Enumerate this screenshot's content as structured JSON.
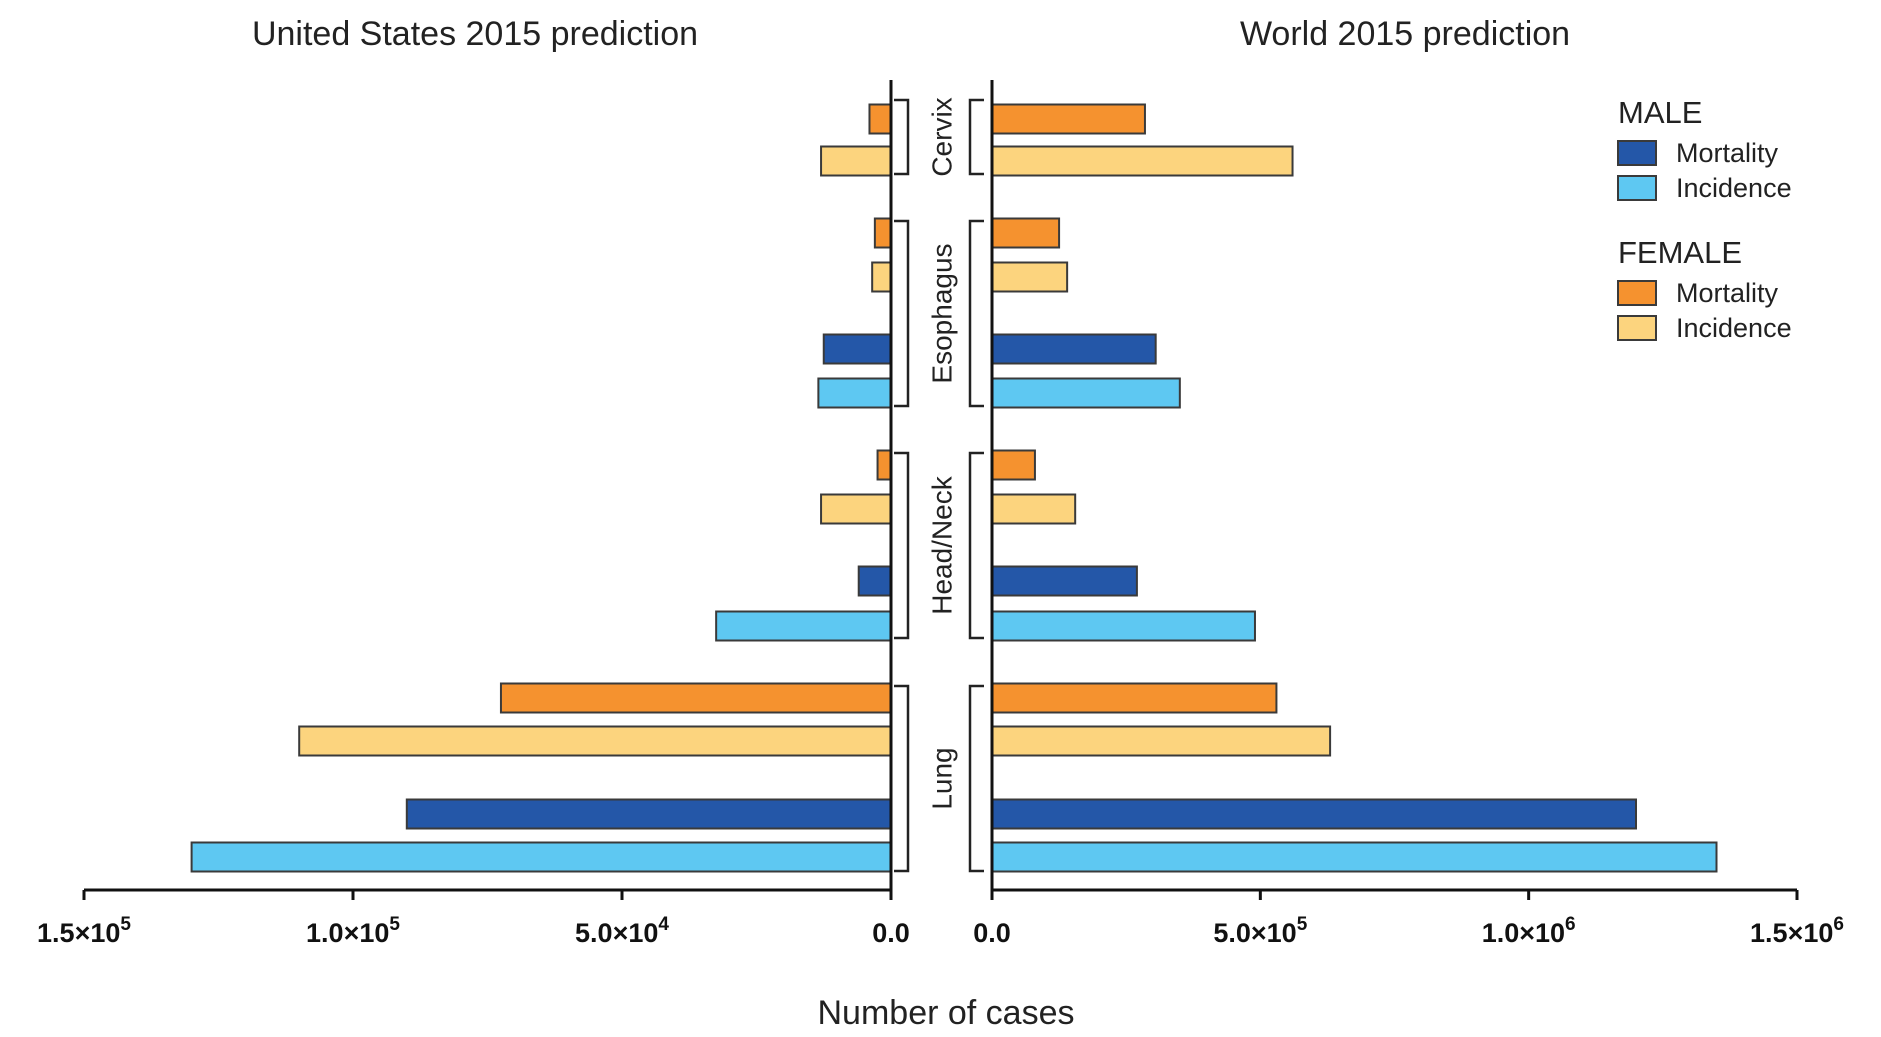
{
  "chart_data": {
    "type": "bar",
    "orientation": "horizontal",
    "xlabel": "Number of cases",
    "groups": [
      "Cervix",
      "Esophagus",
      "Head/Neck",
      "Lung"
    ],
    "colors": {
      "male_mortality": "#2457a8",
      "male_incidence": "#5ec8f2",
      "female_mortality": "#f5922f",
      "female_incidence": "#fcd47e"
    },
    "legend": {
      "placement": "top-right",
      "sections": [
        {
          "title": "MALE",
          "items": [
            {
              "key": "male_mortality",
              "label": "Mortality"
            },
            {
              "key": "male_incidence",
              "label": "Incidence"
            }
          ]
        },
        {
          "title": "FEMALE",
          "items": [
            {
              "key": "female_mortality",
              "label": "Mortality"
            },
            {
              "key": "female_incidence",
              "label": "Incidence"
            }
          ]
        }
      ]
    },
    "panels": [
      {
        "title": "United States 2015 prediction",
        "direction": "left",
        "xlim": [
          0,
          150000
        ],
        "ticks": [
          {
            "value": 150000,
            "label": "1.5×10",
            "exp": "5"
          },
          {
            "value": 100000,
            "label": "1.0×10",
            "exp": "5"
          },
          {
            "value": 50000,
            "label": "5.0×10",
            "exp": "4"
          },
          {
            "value": 0,
            "label": "0.0",
            "exp": ""
          }
        ],
        "bars": [
          {
            "group": "Cervix",
            "key": "female_mortality",
            "value": 4000
          },
          {
            "group": "Cervix",
            "key": "female_incidence",
            "value": 13000
          },
          {
            "group": "Esophagus",
            "key": "female_mortality",
            "value": 3000
          },
          {
            "group": "Esophagus",
            "key": "female_incidence",
            "value": 3500
          },
          {
            "group": "Esophagus",
            "key": "male_mortality",
            "value": 12500
          },
          {
            "group": "Esophagus",
            "key": "male_incidence",
            "value": 13500
          },
          {
            "group": "Head/Neck",
            "key": "female_mortality",
            "value": 2500
          },
          {
            "group": "Head/Neck",
            "key": "female_incidence",
            "value": 13000
          },
          {
            "group": "Head/Neck",
            "key": "male_mortality",
            "value": 6000
          },
          {
            "group": "Head/Neck",
            "key": "male_incidence",
            "value": 32500
          },
          {
            "group": "Lung",
            "key": "female_mortality",
            "value": 72500
          },
          {
            "group": "Lung",
            "key": "female_incidence",
            "value": 110000
          },
          {
            "group": "Lung",
            "key": "male_mortality",
            "value": 90000
          },
          {
            "group": "Lung",
            "key": "male_incidence",
            "value": 130000
          }
        ]
      },
      {
        "title": "World 2015 prediction",
        "direction": "right",
        "xlim": [
          0,
          1500000
        ],
        "ticks": [
          {
            "value": 0,
            "label": "0.0",
            "exp": ""
          },
          {
            "value": 500000,
            "label": "5.0×10",
            "exp": "5"
          },
          {
            "value": 1000000,
            "label": "1.0×10",
            "exp": "6"
          },
          {
            "value": 1500000,
            "label": "1.5×10",
            "exp": "6"
          }
        ],
        "bars": [
          {
            "group": "Cervix",
            "key": "female_mortality",
            "value": 285000
          },
          {
            "group": "Cervix",
            "key": "female_incidence",
            "value": 560000
          },
          {
            "group": "Esophagus",
            "key": "female_mortality",
            "value": 125000
          },
          {
            "group": "Esophagus",
            "key": "female_incidence",
            "value": 140000
          },
          {
            "group": "Esophagus",
            "key": "male_mortality",
            "value": 305000
          },
          {
            "group": "Esophagus",
            "key": "male_incidence",
            "value": 350000
          },
          {
            "group": "Head/Neck",
            "key": "female_mortality",
            "value": 80000
          },
          {
            "group": "Head/Neck",
            "key": "female_incidence",
            "value": 155000
          },
          {
            "group": "Head/Neck",
            "key": "male_mortality",
            "value": 270000
          },
          {
            "group": "Head/Neck",
            "key": "male_incidence",
            "value": 490000
          },
          {
            "group": "Lung",
            "key": "female_mortality",
            "value": 530000
          },
          {
            "group": "Lung",
            "key": "female_incidence",
            "value": 630000
          },
          {
            "group": "Lung",
            "key": "male_mortality",
            "value": 1200000
          },
          {
            "group": "Lung",
            "key": "male_incidence",
            "value": 1350000
          }
        ]
      }
    ]
  }
}
